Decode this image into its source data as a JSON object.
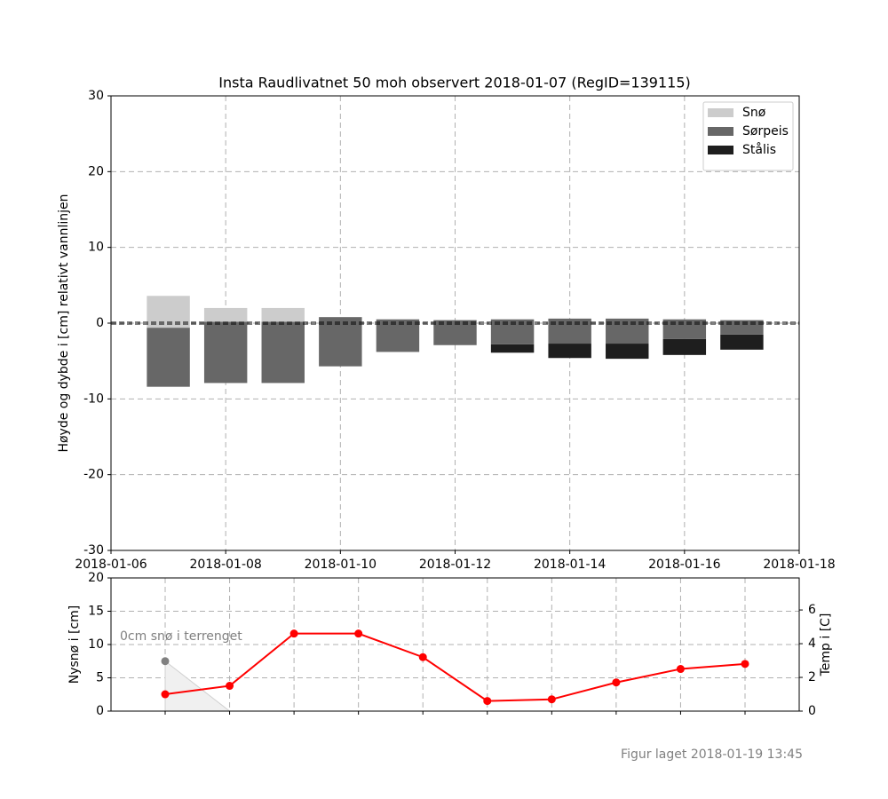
{
  "chart_data": [
    {
      "type": "bar",
      "title": "Insta Raudlivatnet 50 moh observert 2018-01-07 (RegID=139115)",
      "ylabel": "Høyde og dybde i [cm] relativt vannlinjen",
      "x": [
        "2018-01-07",
        "2018-01-08",
        "2018-01-09",
        "2018-01-10",
        "2018-01-11",
        "2018-01-12",
        "2018-01-13",
        "2018-01-14",
        "2018-01-15",
        "2018-01-16",
        "2018-01-17"
      ],
      "bottoms": [
        -8.4,
        -7.9,
        -7.9,
        -5.7,
        -3.8,
        -2.9,
        -3.9,
        -4.6,
        -4.7,
        -4.2,
        -3.5
      ],
      "series": [
        {
          "name": "Snø",
          "color": "#cccccc",
          "values": [
            4.2,
            1.8,
            1.8,
            0,
            0,
            0,
            0,
            0,
            0,
            0,
            0
          ]
        },
        {
          "name": "Sørpeis",
          "color": "#676767",
          "values": [
            7.8,
            8.1,
            8.1,
            6.5,
            4.3,
            3.3,
            3.3,
            3.3,
            3.3,
            2.6,
            1.9
          ]
        },
        {
          "name": "Stålis",
          "color": "#1e1e1e",
          "values": [
            0,
            0,
            0,
            0,
            0,
            0,
            1.1,
            1.9,
            2.0,
            2.1,
            2.0
          ]
        }
      ],
      "xlim": [
        "2018-01-06",
        "2018-01-18"
      ],
      "xticks": [
        "2018-01-06",
        "2018-01-08",
        "2018-01-10",
        "2018-01-12",
        "2018-01-14",
        "2018-01-16",
        "2018-01-18"
      ],
      "ylim": [
        -30,
        30
      ],
      "yticks": [
        -30,
        -20,
        -10,
        0,
        10,
        20,
        30
      ],
      "grid": true,
      "legend": "upper-right",
      "hline": 0
    },
    {
      "type": "line",
      "ylabel": "Nysnø i [cm]",
      "y2label": "Temp i [C]",
      "annotation": "0cm snø i terrenget",
      "categories": [
        null,
        null,
        null,
        null,
        null,
        null,
        null,
        null,
        null,
        null
      ],
      "ylim": [
        0,
        20
      ],
      "yticks": [
        0,
        5,
        10,
        15,
        20
      ],
      "y2lim": [
        0,
        7.9
      ],
      "y2ticks": [
        0,
        2,
        4,
        6
      ],
      "grid": true,
      "series": [
        {
          "type": "line",
          "axis": "y2",
          "color": "#ff0000",
          "values": [
            1.0,
            1.5,
            4.6,
            4.6,
            3.2,
            0.6,
            0.7,
            1.7,
            2.5,
            2.8
          ]
        },
        {
          "type": "area",
          "color": "#808080",
          "fill": "#f0f0f0",
          "values": [
            7.5,
            0,
            null,
            null,
            null,
            null,
            null,
            null,
            null,
            null
          ]
        },
        {
          "type": "bar",
          "color": "#000000",
          "values": [
            0,
            null,
            null,
            null,
            null,
            null,
            null,
            null,
            null,
            null
          ]
        }
      ]
    }
  ],
  "footer": "Figur laget 2018-01-19 13:45"
}
